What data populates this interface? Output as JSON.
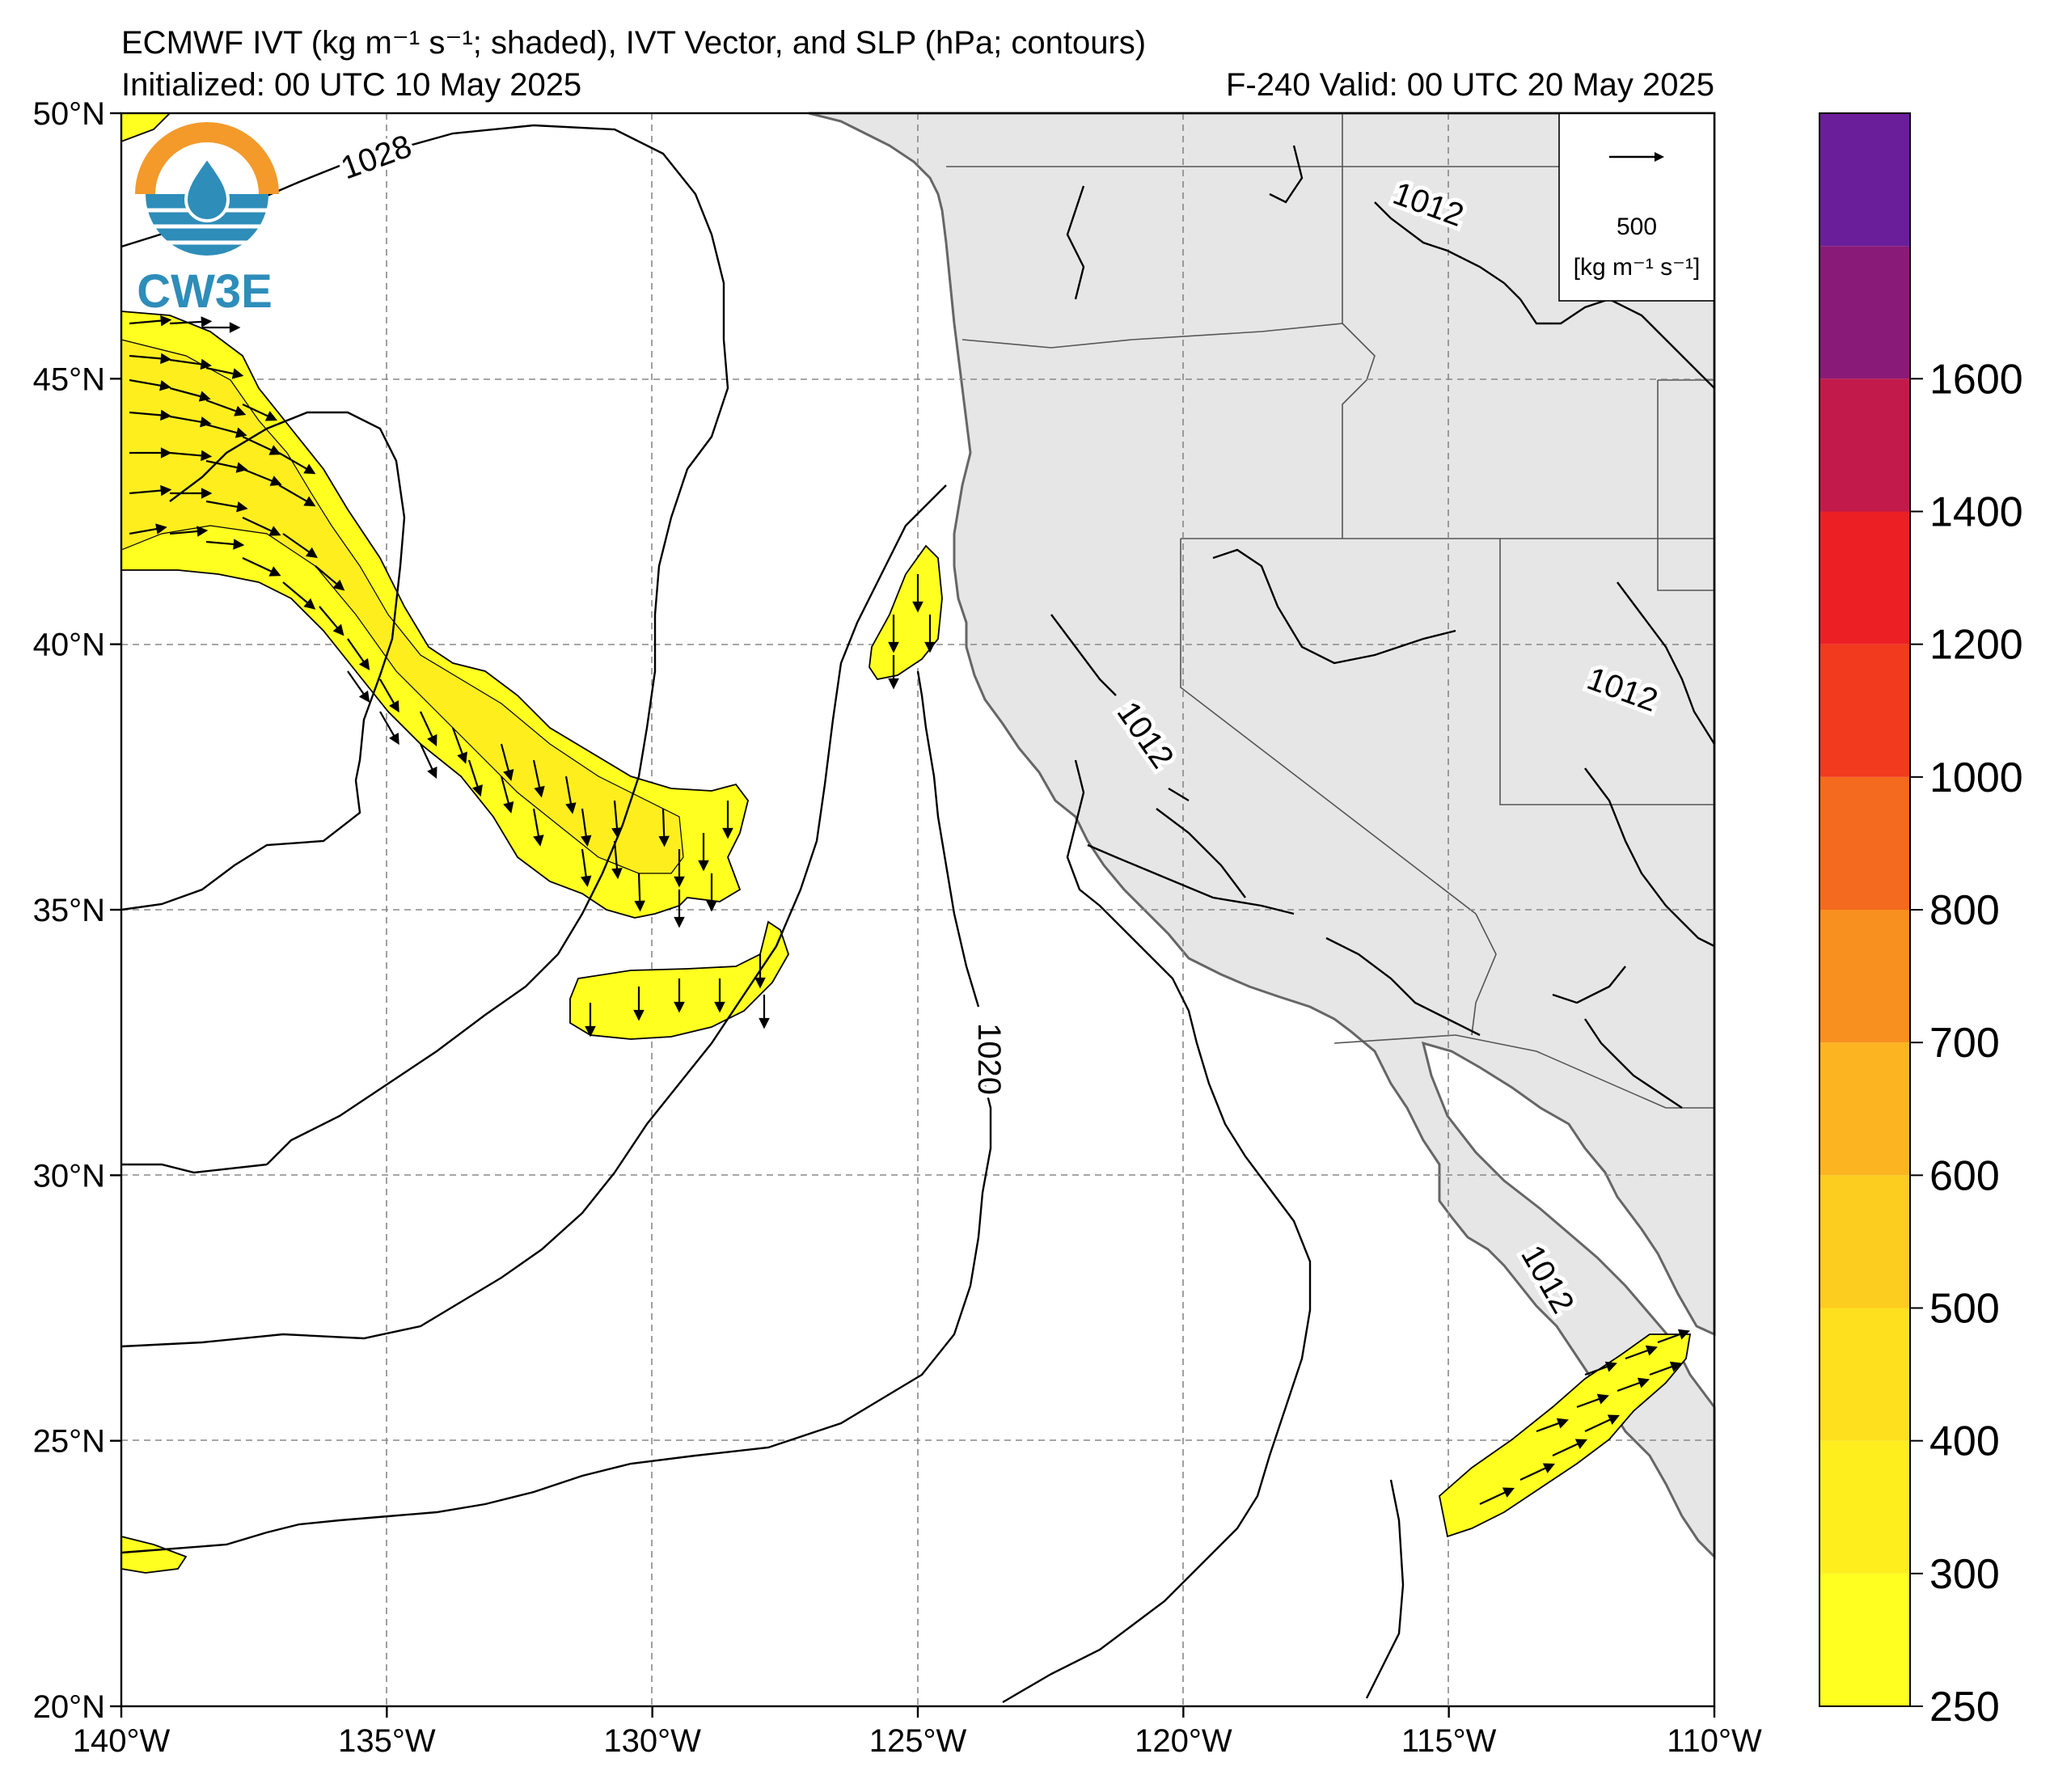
{
  "header": {
    "title_line1": "ECMWF IVT (kg m⁻¹ s⁻¹; shaded), IVT Vector, and SLP (hPa; contours)",
    "init_line": "Initialized: 00 UTC 10 May 2025",
    "valid_line": "F-240  Valid: 00 UTC 20 May 2025"
  },
  "logo": {
    "text": "CW3E",
    "colors": {
      "orange": "#F39A2B",
      "blue": "#2E8DB9"
    }
  },
  "map": {
    "lon_min": -140,
    "lon_max": -110,
    "lat_min": 20,
    "lat_max": 50,
    "lat_labels": [
      "20°N",
      "25°N",
      "30°N",
      "35°N",
      "40°N",
      "45°N",
      "50°N"
    ],
    "lon_labels": [
      "140°W",
      "135°W",
      "130°W",
      "125°W",
      "120°W",
      "115°W",
      "110°W"
    ],
    "land_color": "#E6E6E6",
    "coast_color": "#666666"
  },
  "vector_key": {
    "value": "500",
    "units": "[kg m⁻¹ s⁻¹]"
  },
  "slp_labels": [
    "1028",
    "1012",
    "1012",
    "1012",
    "1012",
    "1020"
  ],
  "colorbar": {
    "levels": [
      "250",
      "300",
      "400",
      "500",
      "600",
      "700",
      "800",
      "1000",
      "1200",
      "1400",
      "1600"
    ],
    "colors": [
      "#FFFF20",
      "#FFEE1E",
      "#FEE01E",
      "#FCCC1E",
      "#FCB420",
      "#F8901F",
      "#F46A1E",
      "#F13A1E",
      "#EC1F25",
      "#C11A4B",
      "#8A1A77",
      "#6A1E9A"
    ]
  }
}
